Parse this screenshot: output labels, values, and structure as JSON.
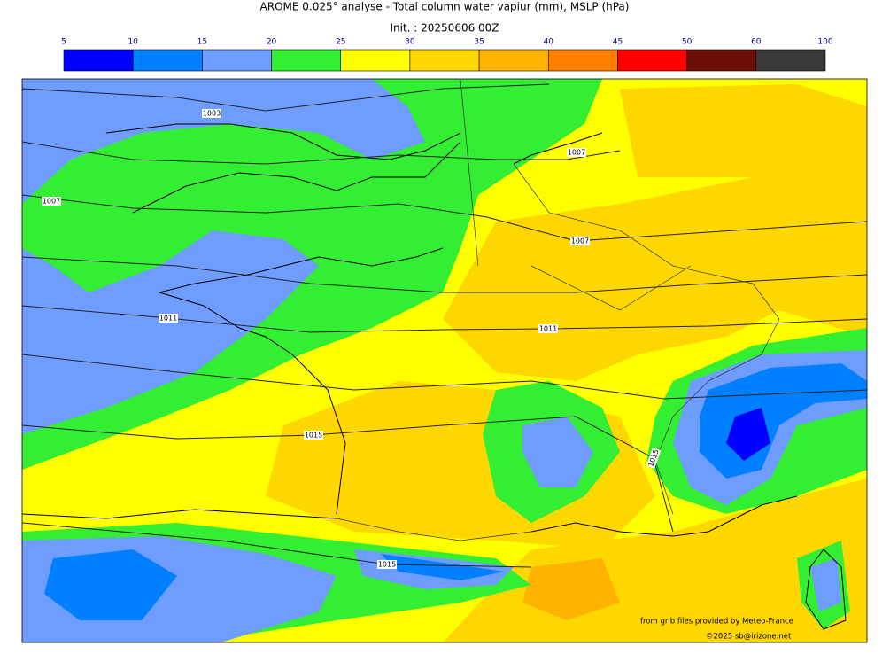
{
  "header": {
    "title": "AROME 0.025° analyse - Total column water vapiur (mm), MSLP (hPa)",
    "subtitle": "Init. : 20250606 00Z"
  },
  "colorbar": {
    "ticks": [
      5,
      10,
      15,
      20,
      25,
      30,
      35,
      40,
      45,
      50,
      60,
      100
    ],
    "colors": [
      "#0000ff",
      "#0080ff",
      "#6f9cff",
      "#33ee33",
      "#ffff00",
      "#ffd700",
      "#ffb300",
      "#ff8000",
      "#ff0000",
      "#6b0e06",
      "#3a3a3a"
    ]
  },
  "isobar_labels": [
    1003,
    1007,
    1007,
    1007,
    1011,
    1011,
    1015,
    1015,
    1015
  ],
  "credits": [
    "from grib files provided by Meteo-France",
    "©2025 sb@irizone.net"
  ]
}
